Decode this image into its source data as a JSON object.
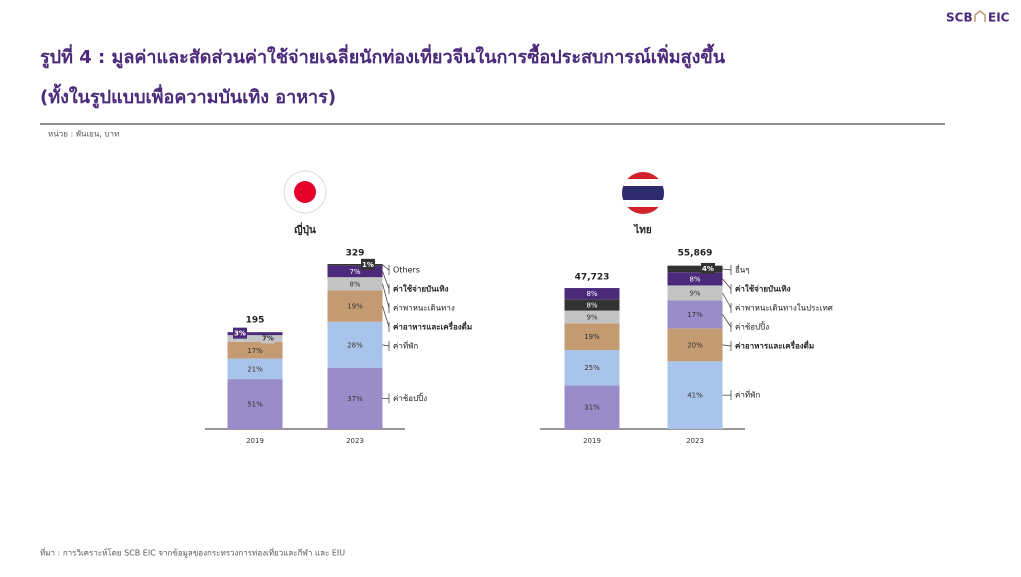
{
  "header": {
    "title_line1": "รูปที่ 4 : มูลค่าและสัดส่วนค่าใช้จ่ายเฉลี่ยนักท่องเที่ยวจีนในการซื้อประสบการณ์เพิ่มสูงขึ้น",
    "title_line2": "(ทั้งในรูปแบบเพื่อความบันเทิง อาหาร)",
    "unit": "หน่วย : พันเยน, บาท",
    "logo_left": "SCB",
    "logo_right": "EIC"
  },
  "footer": {
    "source": "ที่มา : การวิเคราะห์โดย SCB EIC จากข้อมูลของกระทรวงการท่องเที่ยวและกีฬา และ EIU"
  },
  "chart_data": [
    {
      "type": "stacked_bar",
      "title": "ญี่ปุ่น",
      "categories": [
        "2019",
        "2023"
      ],
      "totals": [
        195,
        329
      ],
      "bars": [
        {
          "values": [
            51,
            21,
            17,
            7,
            3
          ],
          "value_labels": [
            "51%",
            "21%",
            "17%",
            "7%",
            "3%"
          ],
          "colors": [
            "#9a8cc9",
            "#a9c4ea",
            "#c49a72",
            "#c4c4c4",
            "#4b2a7b"
          ]
        },
        {
          "values": [
            37,
            28,
            19,
            8,
            7,
            1
          ],
          "value_labels": [
            "37%",
            "28%",
            "19%",
            "8%",
            "7%",
            "1%"
          ],
          "colors": [
            "#9a8cc9",
            "#a9c4ea",
            "#c49a72",
            "#c4c4c4",
            "#4b2a7b",
            "#333333"
          ]
        }
      ],
      "legend": [
        {
          "name": "Others",
          "bold": false
        },
        {
          "name": "ค่าใช้จ่ายบันเทิง",
          "bold": true
        },
        {
          "name": "ค่าพาหนะเดินทาง",
          "bold": false
        },
        {
          "name": "ค่าอาหารและเครื่องดื่ม",
          "bold": true
        },
        {
          "name": "ค่าที่พัก",
          "bold": false
        },
        {
          "name": "ค่าช้อปปิ้ง",
          "bold": false
        }
      ]
    },
    {
      "type": "stacked_bar",
      "title": "ไทย",
      "categories": [
        "2019",
        "2023"
      ],
      "totals": [
        47723,
        55869
      ],
      "total_labels": [
        "47,723",
        "55,869"
      ],
      "bars": [
        {
          "values": [
            31,
            25,
            19,
            9,
            8,
            8
          ],
          "value_labels": [
            "31%",
            "25%",
            "19%",
            "9%",
            "8%",
            "8%"
          ],
          "colors": [
            "#9a8cc9",
            "#a9c4ea",
            "#c49a72",
            "#c4c4c4",
            "#333333",
            "#4b2a7b"
          ]
        },
        {
          "values": [
            41,
            20,
            17,
            9,
            8,
            4
          ],
          "value_labels": [
            "41%",
            "20%",
            "17%",
            "9%",
            "8%",
            "4%"
          ],
          "colors": [
            "#a9c4ea",
            "#c49a72",
            "#9a8cc9",
            "#c4c4c4",
            "#4b2a7b",
            "#333333"
          ]
        }
      ],
      "legend": [
        {
          "name": "อื่นๆ",
          "bold": false
        },
        {
          "name": "ค่าใช้จ่ายบันเทิง",
          "bold": true
        },
        {
          "name": "ค่าพาหนะเดินทางในประเทศ",
          "bold": false
        },
        {
          "name": "ค่าช้อปปิ้ง",
          "bold": false
        },
        {
          "name": "ค่าอาหารและเครื่องดื่ม",
          "bold": true
        },
        {
          "name": "ค่าที่พัก",
          "bold": false
        }
      ]
    }
  ]
}
